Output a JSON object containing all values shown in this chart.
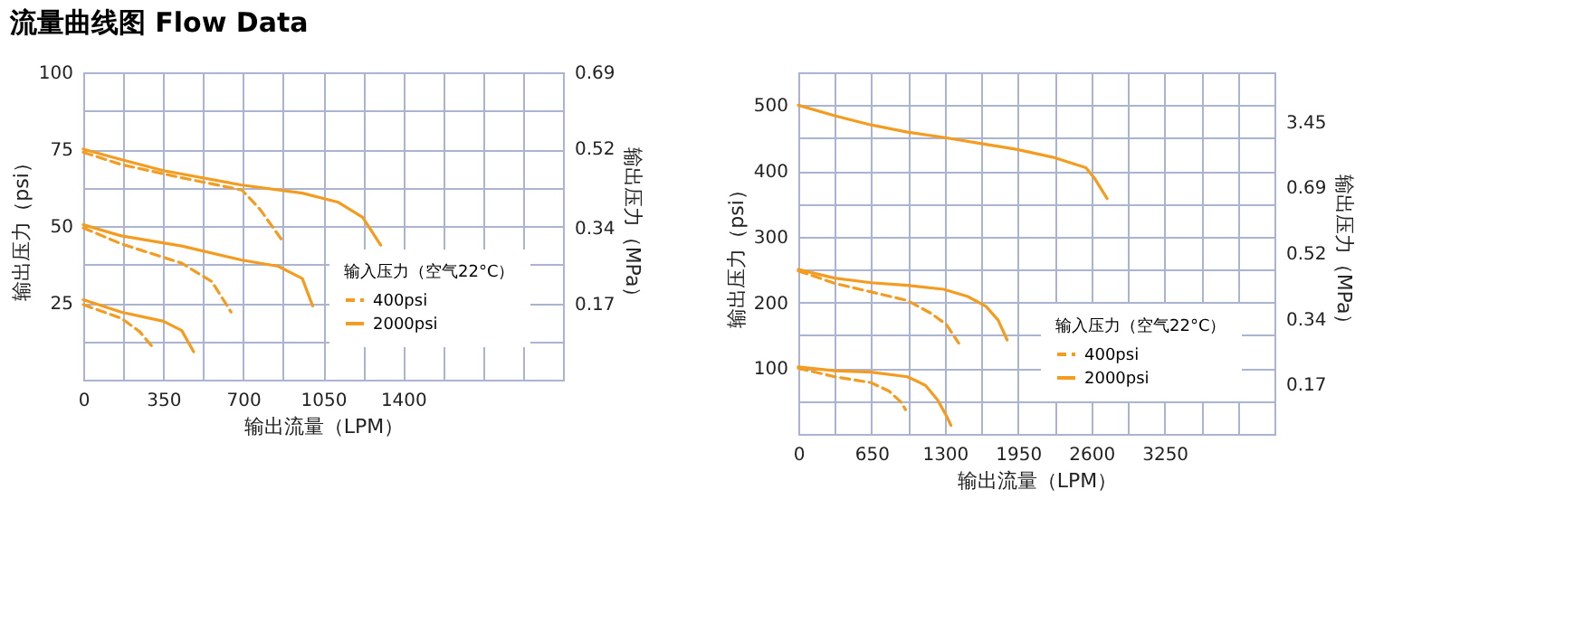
{
  "chart_data": [
    {
      "type": "line",
      "title": "流量曲线图  Flow Data",
      "xlabel": "输出流量（LPM）",
      "ylabel": "输出压力（psi）",
      "y2label": "输出压力（MPa）",
      "legend_title": "输入压力（空气22°C）",
      "legend": "bottom right",
      "grid": true,
      "xlim": [
        0,
        2100
      ],
      "xticks": [
        0,
        {
          "value": 175,
          "label": null
        },
        350,
        {
          "value": 525,
          "label": null
        },
        700,
        {
          "value": 875,
          "label": null
        },
        1050,
        {
          "value": 1225,
          "label": null
        },
        1400,
        {
          "value": 1575,
          "label": null
        },
        {
          "value": 1750,
          "label": null
        },
        {
          "value": 1925,
          "label": null
        },
        {
          "value": 2100,
          "label": null
        }
      ],
      "ylim": [
        0,
        100
      ],
      "yticks": [
        {
          "value": 12.5,
          "label": null
        },
        25,
        {
          "value": 37.5,
          "label": null
        },
        50,
        {
          "value": 62.5,
          "label": null
        },
        75,
        {
          "value": 87.5,
          "label": null
        },
        100
      ],
      "y2lim": [
        0,
        0.69
      ],
      "y2ticks": [
        0.17,
        0.34,
        0.52,
        0.69
      ],
      "series": [
        {
          "name": "400psi",
          "color": "#f39c1f",
          "line_style": "dashed",
          "x": [
            0,
            166,
            431,
            695,
            774,
            866,
            null,
            0,
            166,
            431,
            563,
            647,
            null,
            0,
            166,
            246,
            298
          ],
          "values": [
            74,
            70,
            65.7,
            61.7,
            55.4,
            45.8,
            null,
            49.4,
            44.2,
            37.9,
            31.9,
            22,
            null,
            24.4,
            20,
            15.7,
            11.1
          ]
        },
        {
          "name": "2000psi",
          "color": "#f39c1f",
          "line_style": "solid",
          "x": [
            0,
            166,
            351,
            695,
            959,
            1117,
            1223,
            1302,
            null,
            0,
            166,
            431,
            695,
            853,
            959,
            1004,
            null,
            0,
            166,
            351,
            431,
            483
          ],
          "values": [
            75,
            71.6,
            68,
            63.3,
            60.7,
            57.7,
            52.8,
            43.8,
            null,
            50.4,
            46.8,
            43.5,
            38.9,
            36.9,
            32.9,
            24,
            null,
            26,
            22,
            19,
            16,
            9.1
          ]
        }
      ]
    },
    {
      "type": "line",
      "xlabel": "输出流量（LPM）",
      "ylabel": "输出压力（psi）",
      "y2label": "输出压力（MPa）",
      "legend_title": "输入压力（空气22°C）",
      "legend": "bottom right",
      "grid": true,
      "xlim": [
        0,
        4225
      ],
      "xticks": [
        0,
        {
          "value": 325,
          "label": null
        },
        650,
        {
          "value": 975,
          "label": null
        },
        1300,
        {
          "value": 1625,
          "label": null
        },
        1950,
        {
          "value": 2275,
          "label": null
        },
        2600,
        {
          "value": 2925,
          "label": null
        },
        3250,
        {
          "value": 3575,
          "label": null
        },
        {
          "value": 3900,
          "label": null
        },
        {
          "value": 4225,
          "label": null
        }
      ],
      "ylim": [
        0,
        550
      ],
      "yticks": [
        {
          "value": 50,
          "label": null
        },
        100,
        {
          "value": 150,
          "label": null
        },
        200,
        {
          "value": 250,
          "label": null
        },
        300,
        {
          "value": 350,
          "label": null
        },
        400,
        {
          "value": 450,
          "label": null
        },
        500,
        {
          "value": 550,
          "label": null
        }
      ],
      "y2_categories": [
        "3.45",
        "0.69",
        "0.52",
        "0.34",
        "0.17"
      ],
      "series": [
        {
          "name": "400psi",
          "color": "#f39c1f",
          "line_style": "dashed",
          "x": [
            0,
            322,
            645,
            967,
            1182,
            1316,
            1423,
            null,
            0,
            322,
            645,
            806,
            914,
            951
          ],
          "values": [
            248,
            229,
            216,
            203,
            183,
            166,
            138,
            null,
            100,
            87,
            78,
            65,
            48,
            37
          ]
        },
        {
          "name": "2000psi",
          "color": "#f39c1f",
          "line_style": "solid",
          "x": [
            0,
            322,
            645,
            967,
            1289,
            1612,
            1934,
            2256,
            2552,
            2632,
            2740,
            null,
            0,
            322,
            645,
            967,
            1289,
            1504,
            1665,
            1773,
            1853,
            null,
            0,
            322,
            645,
            967,
            1128,
            1235,
            1316,
            1354
          ],
          "values": [
            500,
            484,
            470,
            459,
            451,
            442,
            433,
            421,
            405,
            388,
            358,
            null,
            250,
            237,
            230,
            226,
            220,
            209,
            194,
            173,
            143,
            null,
            102,
            96,
            94,
            87,
            74,
            52,
            27,
            13
          ]
        }
      ]
    }
  ]
}
